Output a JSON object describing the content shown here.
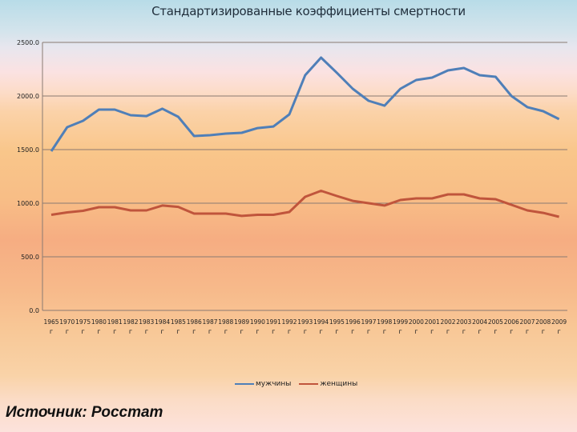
{
  "title": "Стандартизированные  коэффициенты смертности",
  "source_note": "Источник: Росстат",
  "legend": [
    {
      "label": "мужчины",
      "color": "#4f7fb8"
    },
    {
      "label": "женщины",
      "color": "#c0553c"
    }
  ],
  "chart_data": {
    "type": "line",
    "title": "Стандартизированные  коэффициенты смертности",
    "xlabel": "",
    "ylabel": "",
    "ylim": [
      0,
      2500
    ],
    "yticks": [
      "0.0",
      "500.0",
      "1000.0",
      "1500.0",
      "2000.0",
      "2500.0"
    ],
    "grid": true,
    "legend_position": "bottom",
    "x_suffix": "г",
    "categories": [
      "1965",
      "1970",
      "1975",
      "1980",
      "1981",
      "1982",
      "1983",
      "1984",
      "1985",
      "1986",
      "1987",
      "1988",
      "1989",
      "1990",
      "1991",
      "1992",
      "1993",
      "1994",
      "1995",
      "1996",
      "1997",
      "1998",
      "1999",
      "2000",
      "2001",
      "2002",
      "2003",
      "2004",
      "2005",
      "2006",
      "2007",
      "2008",
      "2009"
    ],
    "series": [
      {
        "name": "мужчины",
        "color": "#4f7fb8",
        "values": [
          1485,
          1709,
          1769,
          1873,
          1873,
          1821,
          1813,
          1881,
          1806,
          1627,
          1634,
          1649,
          1657,
          1701,
          1716,
          1828,
          2194,
          2358,
          2216,
          2067,
          1955,
          1910,
          2067,
          2149,
          2172,
          2239,
          2261,
          2194,
          2179,
          2000,
          1896,
          1858,
          1784
        ]
      },
      {
        "name": "женщины",
        "color": "#c0553c",
        "values": [
          892,
          914,
          929,
          963,
          963,
          933,
          933,
          978,
          966,
          903,
          903,
          903,
          881,
          892,
          892,
          918,
          1060,
          1116,
          1067,
          1022,
          1000,
          978,
          1030,
          1045,
          1045,
          1082,
          1082,
          1045,
          1037,
          985,
          933,
          910,
          873
        ]
      }
    ]
  }
}
